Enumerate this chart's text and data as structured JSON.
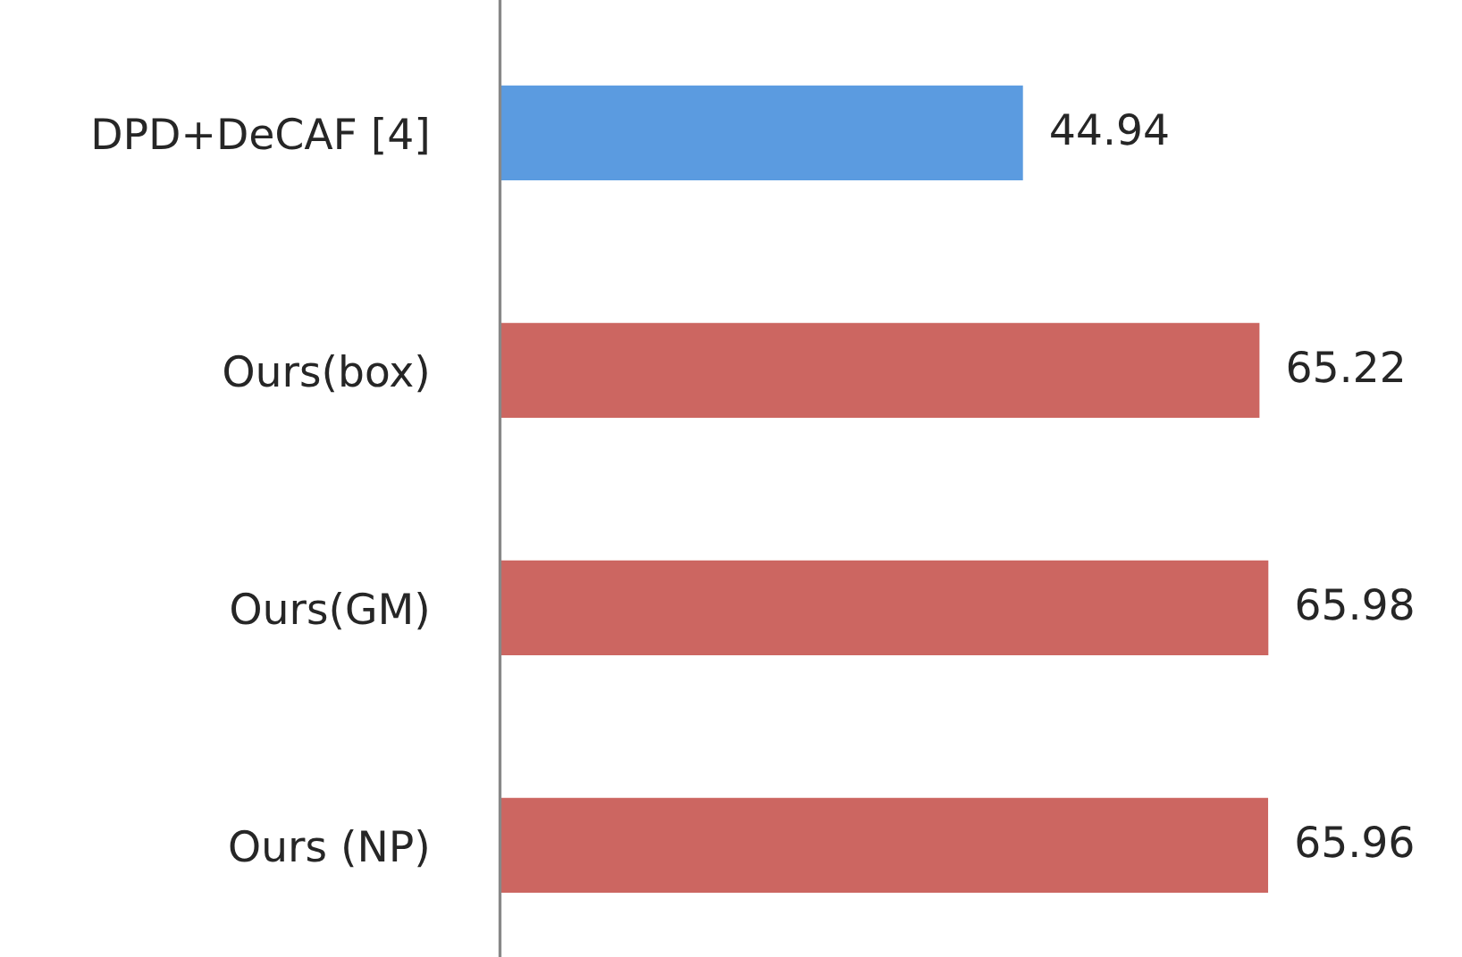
{
  "chart_data": {
    "type": "bar",
    "orientation": "horizontal",
    "categories": [
      "DPD+DeCAF [4]",
      "Ours(box)",
      "Ours(GM)",
      "Ours (NP)"
    ],
    "values": [
      44.94,
      65.22,
      65.98,
      65.96
    ],
    "colors": [
      "#5b9be0",
      "#cc6661",
      "#cc6661",
      "#cc6661"
    ],
    "data_labels": true,
    "grid": false,
    "legend": false
  }
}
